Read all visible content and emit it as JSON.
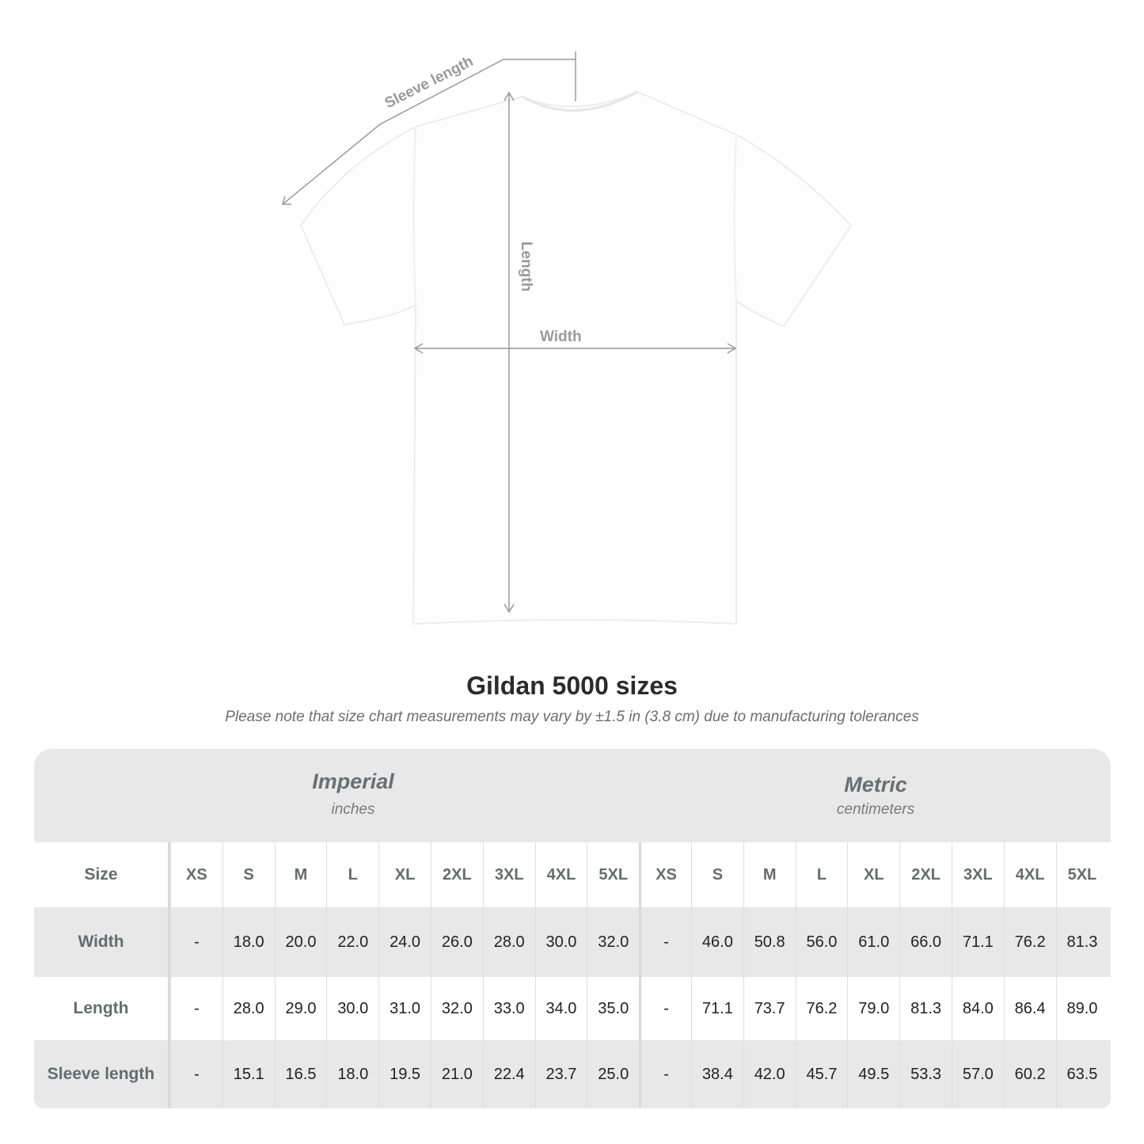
{
  "diagram": {
    "labels": {
      "sleeve": "Sleeve length",
      "length": "Length",
      "width": "Width"
    },
    "line_color": "#9a9a9a"
  },
  "title": "Gildan 5000 sizes",
  "note": "Please note that size chart measurements may vary by ±1.5 in (3.8 cm) due to manufacturing tolerances",
  "table": {
    "imperial": {
      "title": "Imperial",
      "unit": "inches"
    },
    "metric": {
      "title": "Metric",
      "unit": "centimeters"
    },
    "size_label": "Size",
    "sizes": [
      "XS",
      "S",
      "M",
      "L",
      "XL",
      "2XL",
      "3XL",
      "4XL",
      "5XL"
    ],
    "rows": [
      {
        "label": "Width",
        "imperial": [
          "-",
          "18.0",
          "20.0",
          "22.0",
          "24.0",
          "26.0",
          "28.0",
          "30.0",
          "32.0"
        ],
        "metric": [
          "-",
          "46.0",
          "50.8",
          "56.0",
          "61.0",
          "66.0",
          "71.1",
          "76.2",
          "81.3"
        ]
      },
      {
        "label": "Length",
        "imperial": [
          "-",
          "28.0",
          "29.0",
          "30.0",
          "31.0",
          "32.0",
          "33.0",
          "34.0",
          "35.0"
        ],
        "metric": [
          "-",
          "71.1",
          "73.7",
          "76.2",
          "79.0",
          "81.3",
          "84.0",
          "86.4",
          "89.0"
        ]
      },
      {
        "label": "Sleeve length",
        "imperial": [
          "-",
          "15.1",
          "16.5",
          "18.0",
          "19.5",
          "21.0",
          "22.4",
          "23.7",
          "25.0"
        ],
        "metric": [
          "-",
          "38.4",
          "42.0",
          "45.7",
          "49.5",
          "53.3",
          "57.0",
          "60.2",
          "63.5"
        ]
      }
    ]
  }
}
